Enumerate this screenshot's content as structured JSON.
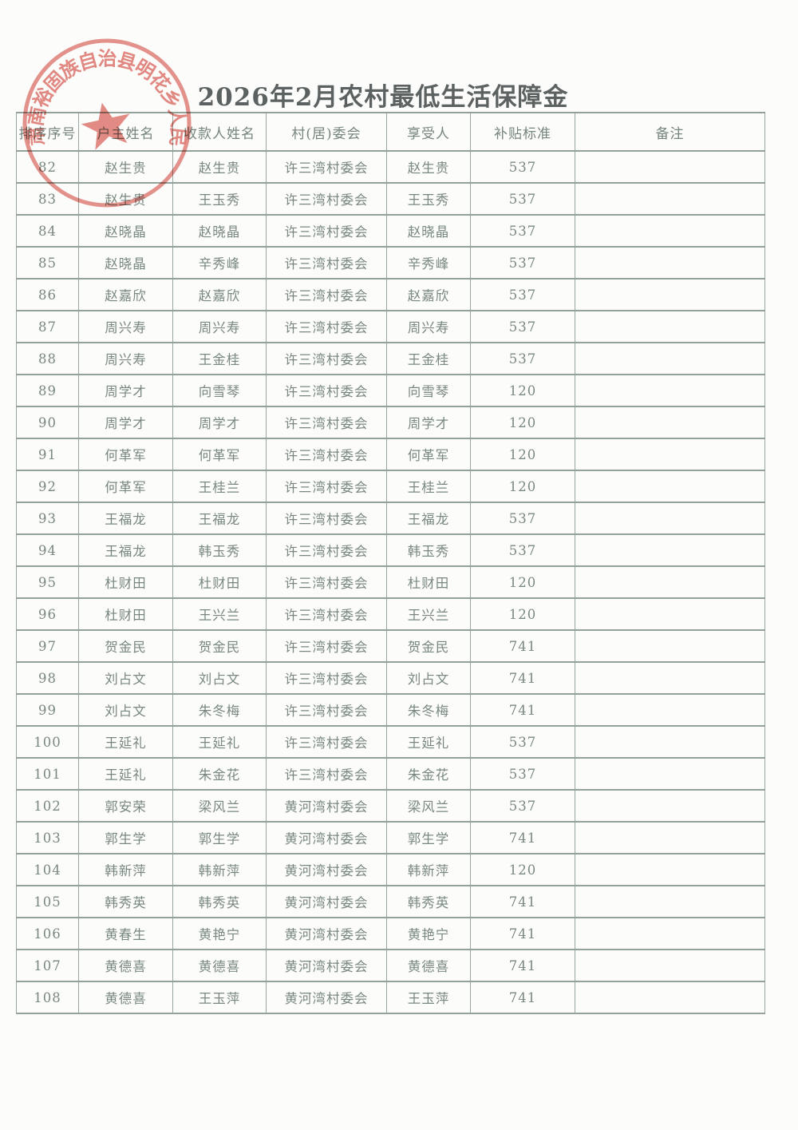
{
  "page": {
    "title": "2026年2月农村最低生活保障金"
  },
  "seal": {
    "text": "肃南裕固族自治县明花乡人民政府",
    "color": "#d85c52",
    "shape": "round-official-seal-with-star"
  },
  "table": {
    "headers": [
      "排序序号",
      "户主姓名",
      "收款人姓名",
      "村(居)委会",
      "享受人",
      "补贴标准",
      "备注"
    ],
    "row_fields": [
      "seq",
      "householder",
      "payee",
      "committee",
      "beneficiary",
      "standard",
      "remark"
    ],
    "rows": [
      {
        "seq": "82",
        "householder": "赵生贵",
        "payee": "赵生贵",
        "committee": "许三湾村委会",
        "beneficiary": "赵生贵",
        "standard": "537",
        "remark": ""
      },
      {
        "seq": "83",
        "householder": "赵生贵",
        "payee": "王玉秀",
        "committee": "许三湾村委会",
        "beneficiary": "王玉秀",
        "standard": "537",
        "remark": ""
      },
      {
        "seq": "84",
        "householder": "赵晓晶",
        "payee": "赵晓晶",
        "committee": "许三湾村委会",
        "beneficiary": "赵晓晶",
        "standard": "537",
        "remark": ""
      },
      {
        "seq": "85",
        "householder": "赵晓晶",
        "payee": "辛秀峰",
        "committee": "许三湾村委会",
        "beneficiary": "辛秀峰",
        "standard": "537",
        "remark": ""
      },
      {
        "seq": "86",
        "householder": "赵嘉欣",
        "payee": "赵嘉欣",
        "committee": "许三湾村委会",
        "beneficiary": "赵嘉欣",
        "standard": "537",
        "remark": ""
      },
      {
        "seq": "87",
        "householder": "周兴寿",
        "payee": "周兴寿",
        "committee": "许三湾村委会",
        "beneficiary": "周兴寿",
        "standard": "537",
        "remark": ""
      },
      {
        "seq": "88",
        "householder": "周兴寿",
        "payee": "王金桂",
        "committee": "许三湾村委会",
        "beneficiary": "王金桂",
        "standard": "537",
        "remark": ""
      },
      {
        "seq": "89",
        "householder": "周学才",
        "payee": "向雪琴",
        "committee": "许三湾村委会",
        "beneficiary": "向雪琴",
        "standard": "120",
        "remark": ""
      },
      {
        "seq": "90",
        "householder": "周学才",
        "payee": "周学才",
        "committee": "许三湾村委会",
        "beneficiary": "周学才",
        "standard": "120",
        "remark": ""
      },
      {
        "seq": "91",
        "householder": "何革军",
        "payee": "何革军",
        "committee": "许三湾村委会",
        "beneficiary": "何革军",
        "standard": "120",
        "remark": ""
      },
      {
        "seq": "92",
        "householder": "何革军",
        "payee": "王桂兰",
        "committee": "许三湾村委会",
        "beneficiary": "王桂兰",
        "standard": "120",
        "remark": ""
      },
      {
        "seq": "93",
        "householder": "王福龙",
        "payee": "王福龙",
        "committee": "许三湾村委会",
        "beneficiary": "王福龙",
        "standard": "537",
        "remark": ""
      },
      {
        "seq": "94",
        "householder": "王福龙",
        "payee": "韩玉秀",
        "committee": "许三湾村委会",
        "beneficiary": "韩玉秀",
        "standard": "537",
        "remark": ""
      },
      {
        "seq": "95",
        "householder": "杜财田",
        "payee": "杜财田",
        "committee": "许三湾村委会",
        "beneficiary": "杜财田",
        "standard": "120",
        "remark": ""
      },
      {
        "seq": "96",
        "householder": "杜财田",
        "payee": "王兴兰",
        "committee": "许三湾村委会",
        "beneficiary": "王兴兰",
        "standard": "120",
        "remark": ""
      },
      {
        "seq": "97",
        "householder": "贺金民",
        "payee": "贺金民",
        "committee": "许三湾村委会",
        "beneficiary": "贺金民",
        "standard": "741",
        "remark": ""
      },
      {
        "seq": "98",
        "householder": "刘占文",
        "payee": "刘占文",
        "committee": "许三湾村委会",
        "beneficiary": "刘占文",
        "standard": "741",
        "remark": ""
      },
      {
        "seq": "99",
        "householder": "刘占文",
        "payee": "朱冬梅",
        "committee": "许三湾村委会",
        "beneficiary": "朱冬梅",
        "standard": "741",
        "remark": ""
      },
      {
        "seq": "100",
        "householder": "王延礼",
        "payee": "王延礼",
        "committee": "许三湾村委会",
        "beneficiary": "王延礼",
        "standard": "537",
        "remark": ""
      },
      {
        "seq": "101",
        "householder": "王延礼",
        "payee": "朱金花",
        "committee": "许三湾村委会",
        "beneficiary": "朱金花",
        "standard": "537",
        "remark": ""
      },
      {
        "seq": "102",
        "householder": "郭安荣",
        "payee": "梁风兰",
        "committee": "黄河湾村委会",
        "beneficiary": "梁风兰",
        "standard": "537",
        "remark": ""
      },
      {
        "seq": "103",
        "householder": "郭生学",
        "payee": "郭生学",
        "committee": "黄河湾村委会",
        "beneficiary": "郭生学",
        "standard": "741",
        "remark": ""
      },
      {
        "seq": "104",
        "householder": "韩新萍",
        "payee": "韩新萍",
        "committee": "黄河湾村委会",
        "beneficiary": "韩新萍",
        "standard": "120",
        "remark": ""
      },
      {
        "seq": "105",
        "householder": "韩秀英",
        "payee": "韩秀英",
        "committee": "黄河湾村委会",
        "beneficiary": "韩秀英",
        "standard": "741",
        "remark": ""
      },
      {
        "seq": "106",
        "householder": "黄春生",
        "payee": "黄艳宁",
        "committee": "黄河湾村委会",
        "beneficiary": "黄艳宁",
        "standard": "741",
        "remark": ""
      },
      {
        "seq": "107",
        "householder": "黄德喜",
        "payee": "黄德喜",
        "committee": "黄河湾村委会",
        "beneficiary": "黄德喜",
        "standard": "741",
        "remark": ""
      },
      {
        "seq": "108",
        "householder": "黄德喜",
        "payee": "王玉萍",
        "committee": "黄河湾村委会",
        "beneficiary": "王玉萍",
        "standard": "741",
        "remark": ""
      }
    ]
  }
}
